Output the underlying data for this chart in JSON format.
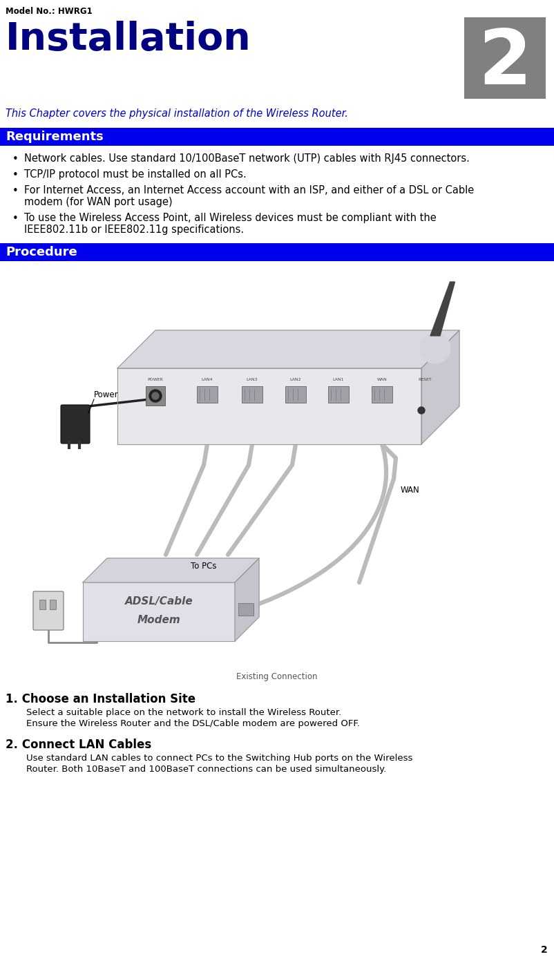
{
  "model_no": "Model No.: HWRG1",
  "title": "Installation",
  "chapter_num": "2",
  "subtitle": "This Chapter covers the physical installation of the Wireless Router.",
  "section1_title": "Requirements",
  "bullets": [
    "Network cables. Use standard 10/100BaseT network (UTP) cables with RJ45 connectors.",
    "TCP/IP protocol must be installed on all PCs.",
    "For Internet Access, an Internet Access account with an ISP, and either of a DSL or Cable modem (for WAN port usage)",
    "To use the Wireless Access Point, all Wireless devices must be compliant with the IEEE802.11b or IEEE802.11g specifications."
  ],
  "section2_title": "Procedure",
  "step1_title": "1. Choose an Installation Site",
  "step1_line1": "Select a suitable place on the network to install the Wireless Router.",
  "step1_line2": "Ensure the Wireless Router and the DSL/Cable modem are powered OFF.",
  "step2_title": "2. Connect LAN Cables",
  "step2_line1": "Use standard LAN cables to connect PCs to the Switching Hub ports on the Wireless",
  "step2_line2": "Router. Both 10BaseT and 100BaseT connections can be used simultaneously.",
  "title_color": "#000080",
  "subtitle_color": "#0000CC",
  "section_header_bg": "#0000EE",
  "section_header_text": "#FFFFFF",
  "chapter_box_color": "#808080",
  "chapter_text_color": "#FFFFFF",
  "body_text_color": "#000000",
  "background_color": "#FFFFFF",
  "router_face_color": "#e0e0e8",
  "router_top_color": "#d0d0d8",
  "router_side_color": "#c0c0c8",
  "router_edge_color": "#999999",
  "antenna_color": "#555555",
  "cable_color": "#bbbbbb",
  "adapter_color": "#333333",
  "modem_face_color": "#e0e0e8",
  "modem_top_color": "#d0d0d8",
  "modem_side_color": "#c0c0c8",
  "outlet_color": "#d8d8d8"
}
